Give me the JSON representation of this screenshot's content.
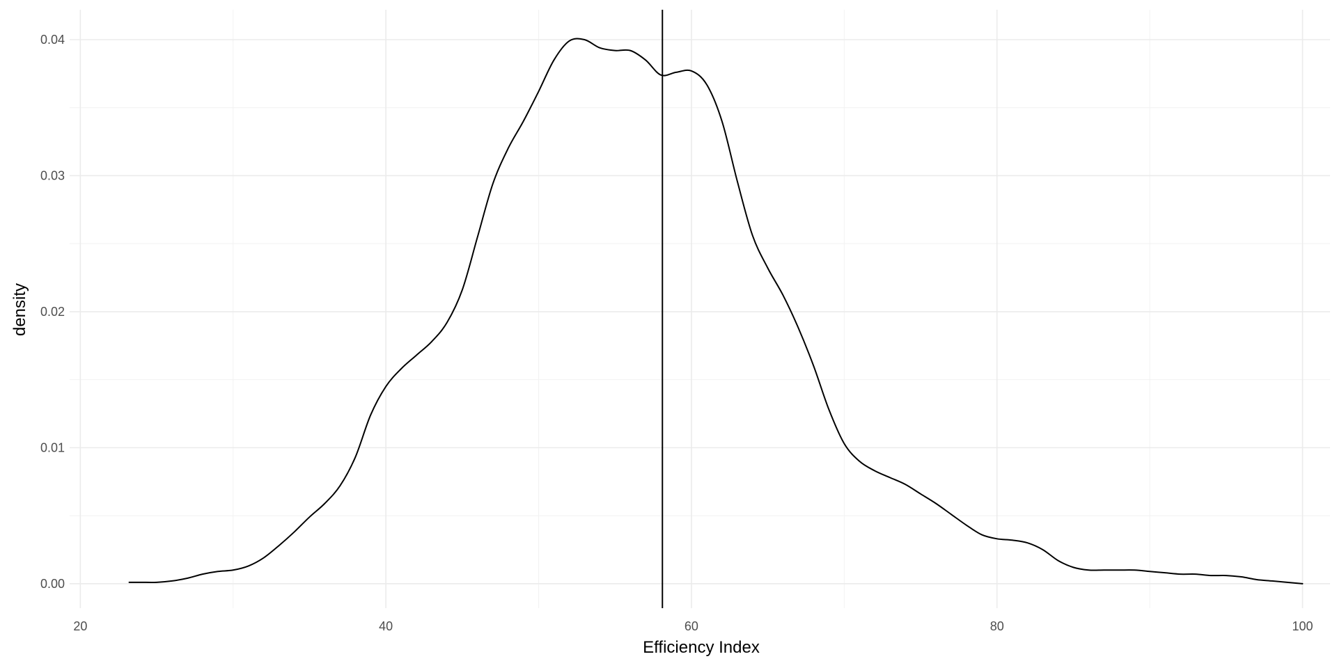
{
  "chart_data": {
    "type": "line",
    "title": "",
    "xlabel": "Efficiency Index",
    "ylabel": "density",
    "xlim": [
      19.3,
      101.8
    ],
    "ylim": [
      -0.0018,
      0.0422
    ],
    "x_ticks": [
      20,
      40,
      60,
      80,
      100
    ],
    "x_tick_labels": [
      "20",
      "40",
      "60",
      "80",
      "100"
    ],
    "x_minor": [
      30,
      50,
      70,
      90
    ],
    "y_ticks": [
      0.0,
      0.01,
      0.02,
      0.03,
      0.04
    ],
    "y_tick_labels": [
      "0.00",
      "0.01",
      "0.02",
      "0.03",
      "0.04"
    ],
    "y_minor": [
      0.005,
      0.015,
      0.025,
      0.035
    ],
    "grid": true,
    "legend": "none",
    "vline": {
      "x": 58.1
    },
    "series": [
      {
        "color": "#000000",
        "x": [
          23.2,
          24,
          25,
          26,
          27,
          28,
          29,
          30,
          31,
          32,
          33,
          34,
          35,
          36,
          37,
          38,
          39,
          40,
          41,
          42,
          43,
          44,
          45,
          46,
          47,
          48,
          49,
          50,
          51,
          52,
          53,
          54,
          55,
          56,
          57,
          58,
          59,
          60,
          61,
          62,
          63,
          64,
          65,
          66,
          67,
          68,
          69,
          70,
          71,
          72,
          73,
          74,
          75,
          76,
          77,
          78,
          79,
          80,
          81,
          82,
          83,
          84,
          85,
          86,
          87,
          88,
          89,
          90,
          91,
          92,
          93,
          94,
          95,
          96,
          97,
          98,
          99,
          100
        ],
        "y": [
          0.0001,
          0.0001,
          0.0001,
          0.0002,
          0.0004,
          0.0007,
          0.0009,
          0.001,
          0.0013,
          0.0019,
          0.0028,
          0.0038,
          0.0049,
          0.0059,
          0.0072,
          0.0093,
          0.0124,
          0.0145,
          0.0158,
          0.0168,
          0.0178,
          0.0192,
          0.0216,
          0.0255,
          0.0294,
          0.032,
          0.034,
          0.0362,
          0.0385,
          0.0399,
          0.04,
          0.0394,
          0.0392,
          0.0392,
          0.0385,
          0.0374,
          0.0376,
          0.0377,
          0.0367,
          0.034,
          0.0296,
          0.0256,
          0.0232,
          0.0212,
          0.0188,
          0.016,
          0.0128,
          0.0103,
          0.009,
          0.0083,
          0.0078,
          0.0073,
          0.0066,
          0.0059,
          0.0051,
          0.0043,
          0.0036,
          0.0033,
          0.0032,
          0.003,
          0.0025,
          0.0017,
          0.0012,
          0.001,
          0.001,
          0.001,
          0.001,
          0.0009,
          0.0008,
          0.0007,
          0.0007,
          0.0006,
          0.0006,
          0.0005,
          0.0003,
          0.0002,
          0.0001,
          0.0
        ]
      }
    ]
  }
}
